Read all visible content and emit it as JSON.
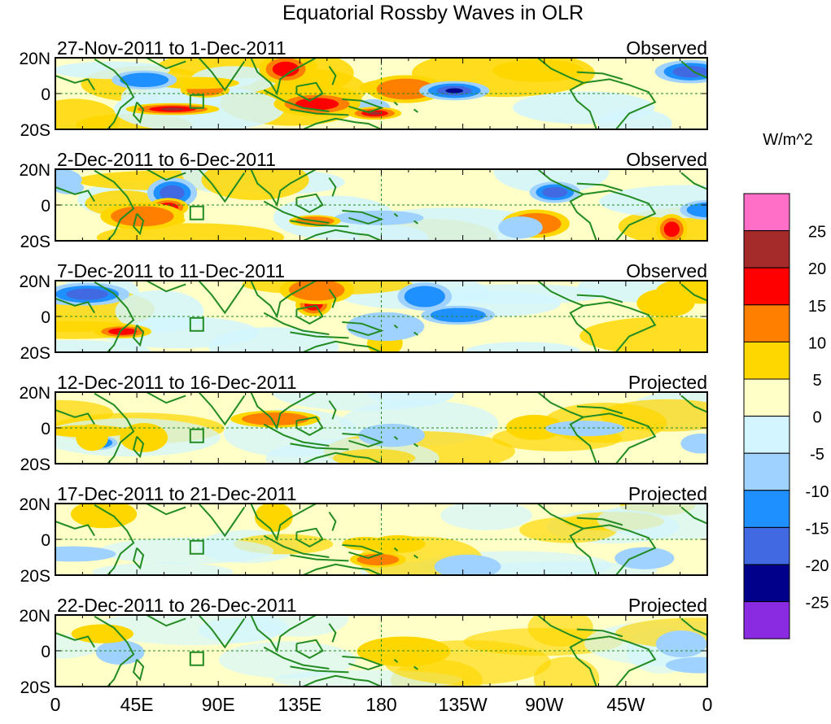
{
  "title": "Equatorial Rossby Waves in OLR",
  "panels": [
    {
      "date_range": "27-Nov-2011 to 1-Dec-2011",
      "label": "Observed",
      "intensity": 1.0
    },
    {
      "date_range": "2-Dec-2011 to 6-Dec-2011",
      "label": "Observed",
      "intensity": 1.0
    },
    {
      "date_range": "7-Dec-2011 to 11-Dec-2011",
      "label": "Observed",
      "intensity": 0.9
    },
    {
      "date_range": "12-Dec-2011 to 16-Dec-2011",
      "label": "Projected",
      "intensity": 0.55
    },
    {
      "date_range": "17-Dec-2011 to 21-Dec-2011",
      "label": "Projected",
      "intensity": 0.45
    },
    {
      "date_range": "22-Dec-2011 to 26-Dec-2011",
      "label": "Projected",
      "intensity": 0.3
    }
  ],
  "y_ticks": [
    "20N",
    "0",
    "20S"
  ],
  "x_ticks": [
    "0",
    "45E",
    "90E",
    "135E",
    "180",
    "135W",
    "90W",
    "45W",
    "0"
  ],
  "colorbar": {
    "unit_label": "W/m^2",
    "levels": [
      {
        "label": "25",
        "color": "#ff6ec7"
      },
      {
        "label": "20",
        "color": "#a52a2a"
      },
      {
        "label": "15",
        "color": "#ff0000"
      },
      {
        "label": "10",
        "color": "#ff7f00"
      },
      {
        "label": "5",
        "color": "#ffd700"
      },
      {
        "label": "0",
        "color": "#ffffc8"
      },
      {
        "label": "-5",
        "color": "#d2f5ff"
      },
      {
        "label": "-10",
        "color": "#a0d2ff"
      },
      {
        "label": "-15",
        "color": "#1e90ff"
      },
      {
        "label": "-20",
        "color": "#4169e1"
      },
      {
        "label": "-25",
        "color": "#00008b"
      },
      {
        "label": "",
        "color": "#8a2be2"
      }
    ]
  },
  "colors": {
    "coastline": "#228b22",
    "zero_line": "#228b22",
    "frame": "#000000"
  }
}
